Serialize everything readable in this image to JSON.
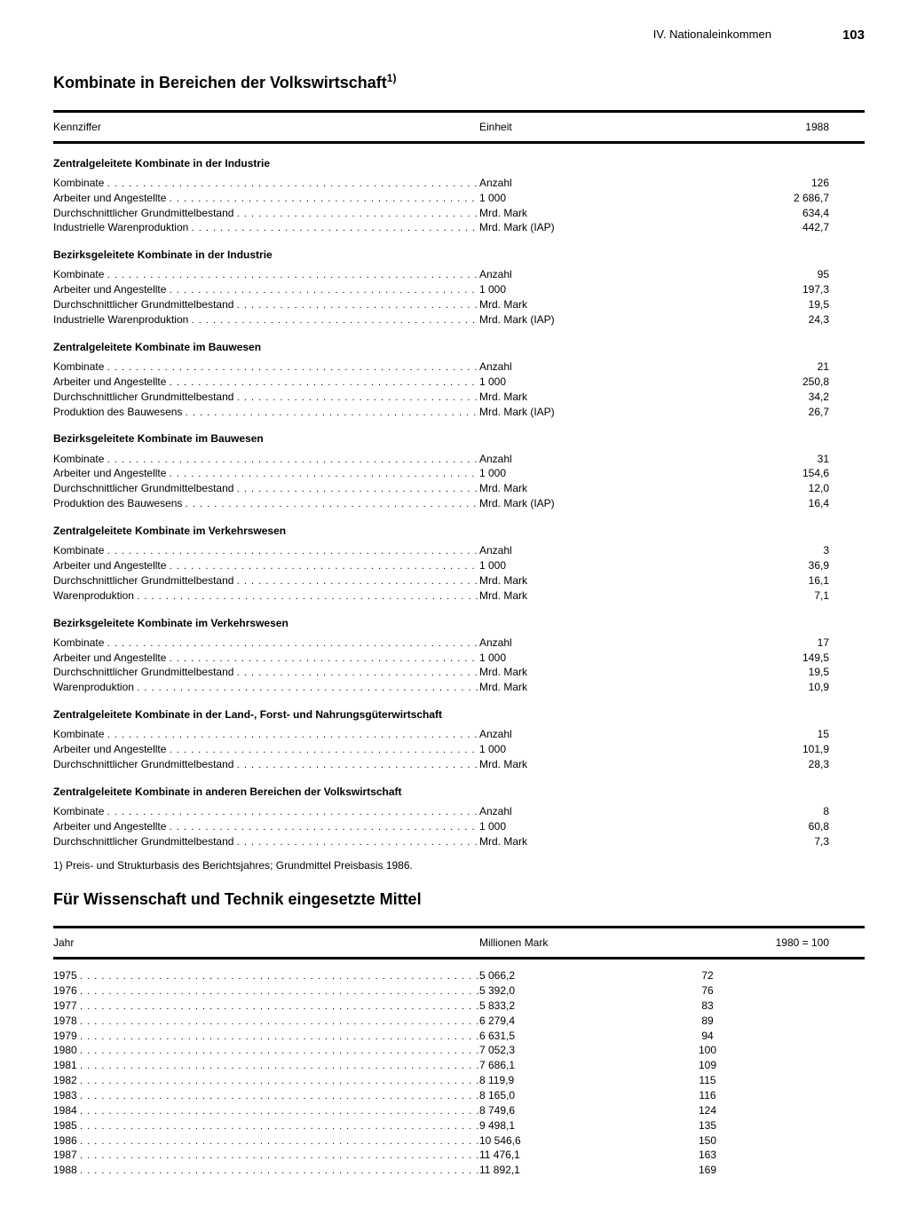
{
  "header": {
    "chapter": "IV. Nationaleinkommen",
    "page": "103"
  },
  "section1": {
    "title": "Kombinate in Bereichen der Volkswirtschaft",
    "sup": "1)",
    "columns": {
      "label": "Kennziffer",
      "unit": "Einheit",
      "year": "1988"
    },
    "groups": [
      {
        "title": "Zentralgeleitete Kombinate in der Industrie",
        "rows": [
          {
            "label": "Kombinate",
            "unit": "Anzahl",
            "val": "126"
          },
          {
            "label": "Arbeiter und Angestellte",
            "unit": "1 000",
            "val": "2 686,7"
          },
          {
            "label": "Durchschnittlicher Grundmittelbestand",
            "unit": "Mrd. Mark",
            "val": "634,4"
          },
          {
            "label": "Industrielle Warenproduktion",
            "unit": "Mrd. Mark (IAP)",
            "val": "442,7"
          }
        ]
      },
      {
        "title": "Bezirksgeleitete Kombinate in der Industrie",
        "rows": [
          {
            "label": "Kombinate",
            "unit": "Anzahl",
            "val": "95"
          },
          {
            "label": "Arbeiter und Angestellte",
            "unit": "1 000",
            "val": "197,3"
          },
          {
            "label": "Durchschnittlicher Grundmittelbestand",
            "unit": "Mrd. Mark",
            "val": "19,5"
          },
          {
            "label": "Industrielle Warenproduktion",
            "unit": "Mrd. Mark (IAP)",
            "val": "24,3"
          }
        ]
      },
      {
        "title": "Zentralgeleitete Kombinate im Bauwesen",
        "rows": [
          {
            "label": "Kombinate",
            "unit": "Anzahl",
            "val": "21"
          },
          {
            "label": "Arbeiter und Angestellte",
            "unit": "1 000",
            "val": "250,8"
          },
          {
            "label": "Durchschnittlicher Grundmittelbestand",
            "unit": "Mrd. Mark",
            "val": "34,2"
          },
          {
            "label": "Produktion des Bauwesens",
            "unit": "Mrd. Mark (IAP)",
            "val": "26,7"
          }
        ]
      },
      {
        "title": "Bezirksgeleitete Kombinate im Bauwesen",
        "rows": [
          {
            "label": "Kombinate",
            "unit": "Anzahl",
            "val": "31"
          },
          {
            "label": "Arbeiter und Angestellte",
            "unit": "1 000",
            "val": "154,6"
          },
          {
            "label": "Durchschnittlicher Grundmittelbestand",
            "unit": "Mrd. Mark",
            "val": "12,0"
          },
          {
            "label": "Produktion des Bauwesens",
            "unit": "Mrd. Mark (IAP)",
            "val": "16,4"
          }
        ]
      },
      {
        "title": "Zentralgeleitete Kombinate im Verkehrswesen",
        "rows": [
          {
            "label": "Kombinate",
            "unit": "Anzahl",
            "val": "3"
          },
          {
            "label": "Arbeiter und Angestellte",
            "unit": "1 000",
            "val": "36,9"
          },
          {
            "label": "Durchschnittlicher Grundmittelbestand",
            "unit": "Mrd. Mark",
            "val": "16,1"
          },
          {
            "label": "Warenproduktion",
            "unit": "Mrd. Mark",
            "val": "7,1"
          }
        ]
      },
      {
        "title": "Bezirksgeleitete Kombinate im Verkehrswesen",
        "rows": [
          {
            "label": "Kombinate",
            "unit": "Anzahl",
            "val": "17"
          },
          {
            "label": "Arbeiter und Angestellte",
            "unit": "1 000",
            "val": "149,5"
          },
          {
            "label": "Durchschnittlicher Grundmittelbestand",
            "unit": "Mrd. Mark",
            "val": "19,5"
          },
          {
            "label": "Warenproduktion",
            "unit": "Mrd. Mark",
            "val": "10,9"
          }
        ]
      },
      {
        "title": "Zentralgeleitete Kombinate in der Land-, Forst- und Nahrungsgüterwirtschaft",
        "rows": [
          {
            "label": "Kombinate",
            "unit": "Anzahl",
            "val": "15"
          },
          {
            "label": "Arbeiter und Angestellte",
            "unit": "1 000",
            "val": "101,9"
          },
          {
            "label": "Durchschnittlicher Grundmittelbestand",
            "unit": "Mrd. Mark",
            "val": "28,3"
          }
        ]
      },
      {
        "title": "Zentralgeleitete Kombinate in anderen Bereichen der Volkswirtschaft",
        "rows": [
          {
            "label": "Kombinate",
            "unit": "Anzahl",
            "val": "8"
          },
          {
            "label": "Arbeiter und Angestellte",
            "unit": "1 000",
            "val": "60,8"
          },
          {
            "label": "Durchschnittlicher Grundmittelbestand",
            "unit": "Mrd. Mark",
            "val": "7,3"
          }
        ]
      }
    ],
    "footnote": "1) Preis- und Strukturbasis des Berichtsjahres; Grundmittel Preisbasis 1986."
  },
  "section2": {
    "title": "Für Wissenschaft und Technik eingesetzte Mittel",
    "columns": {
      "label": "Jahr",
      "unit": "Millionen Mark",
      "index": "1980 = 100"
    },
    "rows": [
      {
        "year": "1975",
        "mm": "5 066,2",
        "idx": "72"
      },
      {
        "year": "1976",
        "mm": "5 392,0",
        "idx": "76"
      },
      {
        "year": "1977",
        "mm": "5 833,2",
        "idx": "83"
      },
      {
        "year": "1978",
        "mm": "6 279,4",
        "idx": "89"
      },
      {
        "year": "1979",
        "mm": "6 631,5",
        "idx": "94"
      },
      {
        "year": "1980",
        "mm": "7 052,3",
        "idx": "100"
      },
      {
        "year": "1981",
        "mm": "7 686,1",
        "idx": "109"
      },
      {
        "year": "1982",
        "mm": "8 119,9",
        "idx": "115"
      },
      {
        "year": "1983",
        "mm": "8 165,0",
        "idx": "116"
      },
      {
        "year": "1984",
        "mm": "8 749,6",
        "idx": "124"
      },
      {
        "year": "1985",
        "mm": "9 498,1",
        "idx": "135"
      },
      {
        "year": "1986",
        "mm": "10 546,6",
        "idx": "150"
      },
      {
        "year": "1987",
        "mm": "11 476,1",
        "idx": "163"
      },
      {
        "year": "1988",
        "mm": "11 892,1",
        "idx": "169"
      }
    ]
  }
}
